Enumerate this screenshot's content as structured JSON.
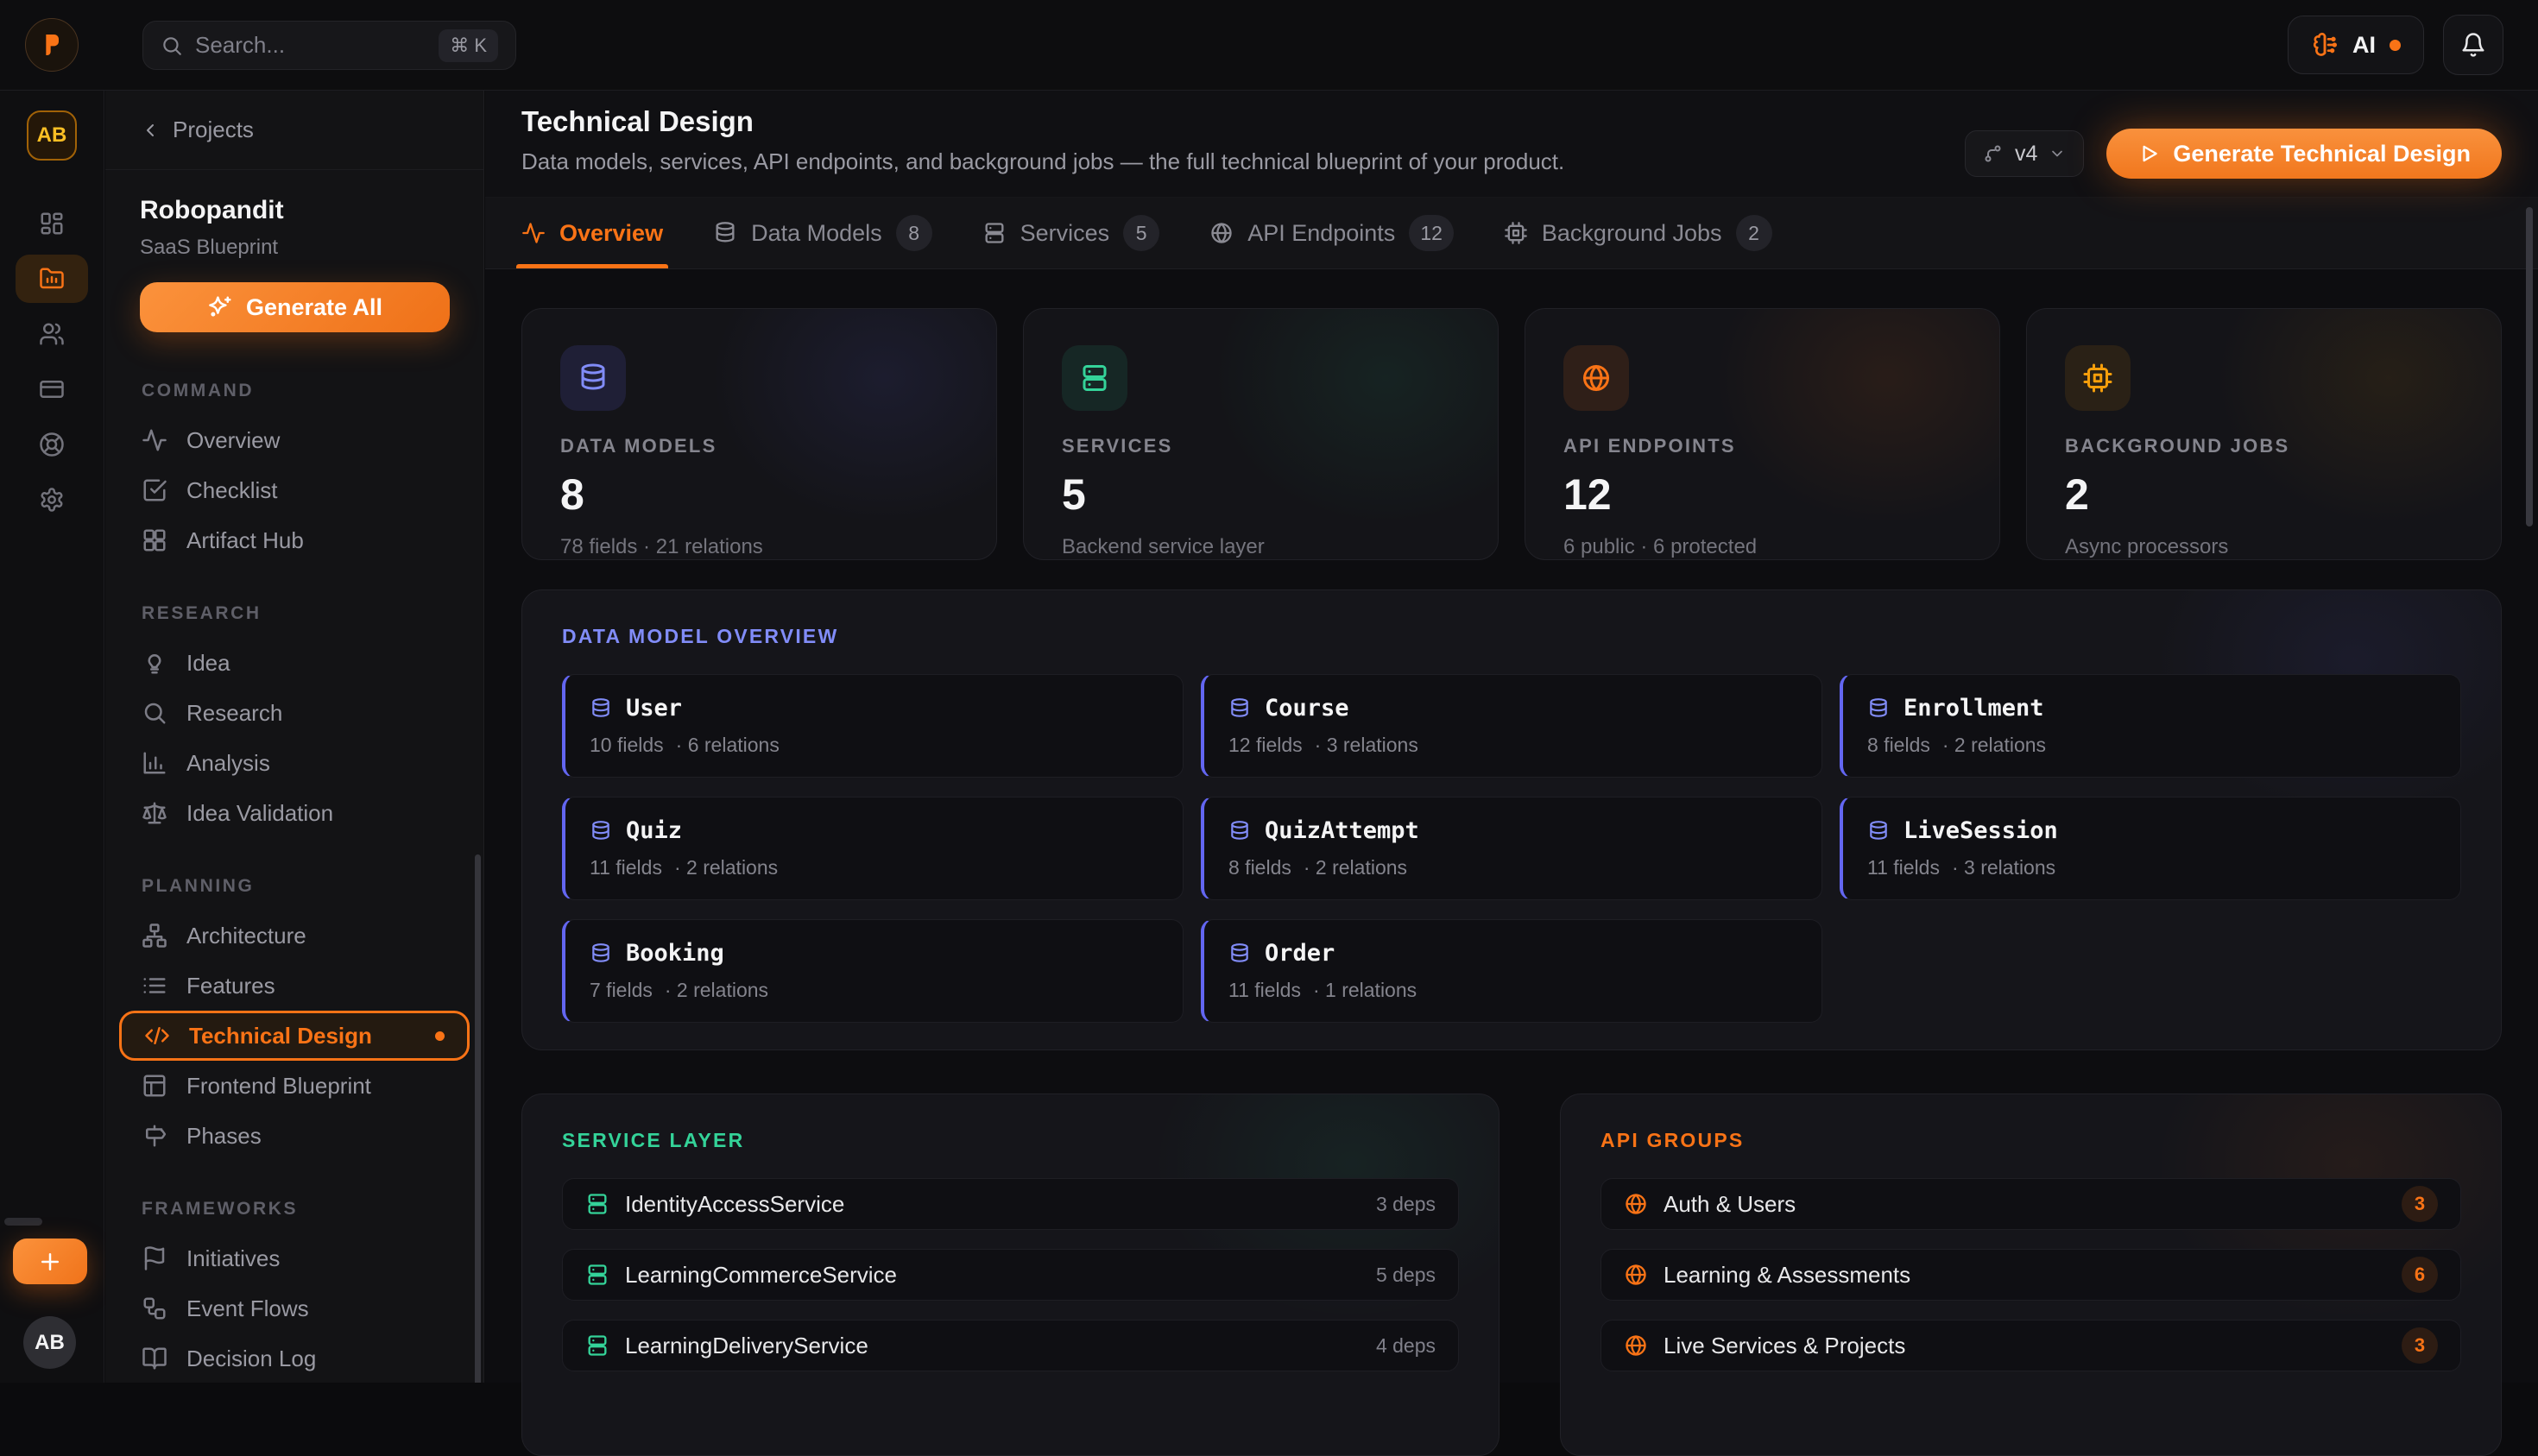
{
  "topbar": {
    "search_placeholder": "Search...",
    "search_shortcut": "⌘ K",
    "ai_label": "AI"
  },
  "rail": {
    "workspace_initials": "AB",
    "user_initials": "AB",
    "items": [
      {
        "icon": "dashboard",
        "active": false
      },
      {
        "icon": "folder",
        "active": true
      },
      {
        "icon": "users",
        "active": false
      },
      {
        "icon": "credit-card",
        "active": false
      },
      {
        "icon": "life-buoy",
        "active": false
      },
      {
        "icon": "settings",
        "active": false
      }
    ]
  },
  "sidebar": {
    "back_label": "Projects",
    "project_name": "Robopandit",
    "project_type": "SaaS Blueprint",
    "generate_all_label": "Generate All",
    "sections": [
      {
        "label": "COMMAND",
        "items": [
          {
            "label": "Overview",
            "icon": "activity",
            "active": false
          },
          {
            "label": "Checklist",
            "icon": "check-square",
            "active": false
          },
          {
            "label": "Artifact Hub",
            "icon": "grid",
            "active": false
          }
        ]
      },
      {
        "label": "RESEARCH",
        "items": [
          {
            "label": "Idea",
            "icon": "lightbulb",
            "active": false
          },
          {
            "label": "Research",
            "icon": "search",
            "active": false
          },
          {
            "label": "Analysis",
            "icon": "bar-chart",
            "active": false
          },
          {
            "label": "Idea Validation",
            "icon": "scale",
            "active": false
          }
        ]
      },
      {
        "label": "PLANNING",
        "items": [
          {
            "label": "Architecture",
            "icon": "network",
            "active": false
          },
          {
            "label": "Features",
            "icon": "list",
            "active": false
          },
          {
            "label": "Technical Design",
            "icon": "code",
            "active": true
          },
          {
            "label": "Frontend Blueprint",
            "icon": "layout",
            "active": false
          },
          {
            "label": "Phases",
            "icon": "signpost",
            "active": false
          }
        ]
      },
      {
        "label": "FRAMEWORKS",
        "items": [
          {
            "label": "Initiatives",
            "icon": "flag",
            "active": false
          },
          {
            "label": "Event Flows",
            "icon": "workflow",
            "active": false
          },
          {
            "label": "Decision Log",
            "icon": "book-open",
            "active": false
          },
          {
            "label": "",
            "icon": "package",
            "active": false
          }
        ]
      }
    ]
  },
  "header": {
    "title": "Technical Design",
    "subtitle": "Data models, services, API endpoints, and background jobs — the full technical blueprint of your product.",
    "version_label": "v4",
    "generate_label": "Generate Technical Design"
  },
  "tabs": [
    {
      "label": "Overview",
      "icon": "activity",
      "active": true,
      "count": ""
    },
    {
      "label": "Data Models",
      "icon": "database",
      "active": false,
      "count": "8"
    },
    {
      "label": "Services",
      "icon": "server",
      "active": false,
      "count": "5"
    },
    {
      "label": "API Endpoints",
      "icon": "globe",
      "active": false,
      "count": "12"
    },
    {
      "label": "Background Jobs",
      "icon": "cpu",
      "active": false,
      "count": "2"
    }
  ],
  "stats": [
    {
      "label": "DATA MODELS",
      "value": "8",
      "caption": "78 fields · 21 relations",
      "icon": "database",
      "accent": "#818cf8",
      "icon_bg": "rgba(99,102,241,0.14)",
      "glow": "rgba(99,102,241,0.10)"
    },
    {
      "label": "SERVICES",
      "value": "5",
      "caption": "Backend service layer",
      "icon": "server",
      "accent": "#34d399",
      "icon_bg": "rgba(52,211,153,0.10)",
      "glow": "rgba(52,211,153,0.08)"
    },
    {
      "label": "API ENDPOINTS",
      "value": "12",
      "caption": "6 public · 6 protected",
      "icon": "globe",
      "accent": "#f97316",
      "icon_bg": "rgba(249,115,22,0.12)",
      "glow": "rgba(249,115,22,0.09)"
    },
    {
      "label": "BACKGROUND JOBS",
      "value": "2",
      "caption": "Async processors",
      "icon": "cpu",
      "accent": "#f59e0b",
      "icon_bg": "rgba(245,158,11,0.10)",
      "glow": "rgba(245,158,11,0.08)"
    }
  ],
  "models": {
    "section_title": "DATA MODEL OVERVIEW",
    "items": [
      {
        "name": "User",
        "fields": "10 fields",
        "relations": "· 6 relations"
      },
      {
        "name": "Course",
        "fields": "12 fields",
        "relations": "· 3 relations"
      },
      {
        "name": "Enrollment",
        "fields": "8 fields",
        "relations": "· 2 relations"
      },
      {
        "name": "Quiz",
        "fields": "11 fields",
        "relations": "· 2 relations"
      },
      {
        "name": "QuizAttempt",
        "fields": "8 fields",
        "relations": "· 2 relations"
      },
      {
        "name": "LiveSession",
        "fields": "11 fields",
        "relations": "· 3 relations"
      },
      {
        "name": "Booking",
        "fields": "7 fields",
        "relations": "· 2 relations"
      },
      {
        "name": "Order",
        "fields": "11 fields",
        "relations": "· 1 relations"
      }
    ]
  },
  "services": {
    "section_title": "SERVICE LAYER",
    "items": [
      {
        "name": "IdentityAccessService",
        "deps": "3 deps"
      },
      {
        "name": "LearningCommerceService",
        "deps": "5 deps"
      },
      {
        "name": "LearningDeliveryService",
        "deps": "4 deps"
      }
    ]
  },
  "api_groups": {
    "section_title": "API GROUPS",
    "items": [
      {
        "name": "Auth & Users",
        "count": "3"
      },
      {
        "name": "Learning & Assessments",
        "count": "6"
      },
      {
        "name": "Live Services & Projects",
        "count": "3"
      }
    ]
  },
  "colors": {
    "accent_orange": "#f97316",
    "indigo": "#818cf8",
    "teal": "#34d399",
    "amber": "#f59e0b"
  }
}
